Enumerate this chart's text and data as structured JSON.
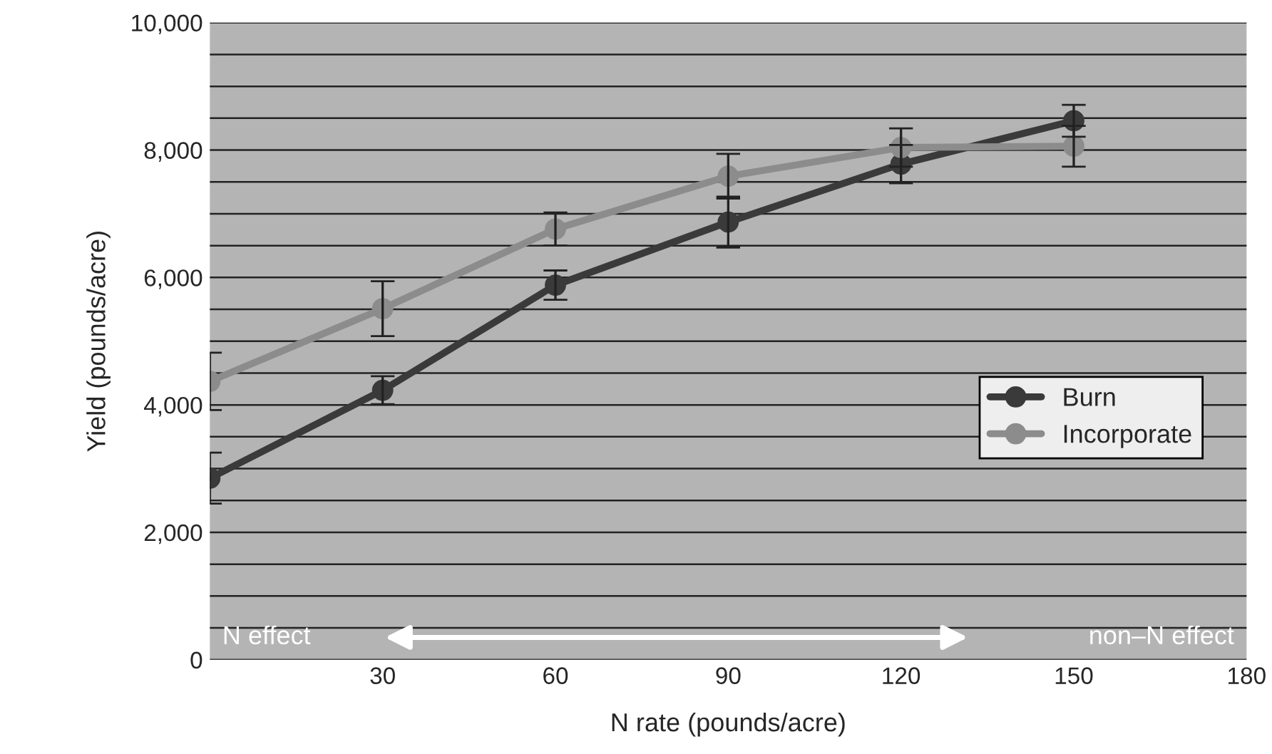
{
  "chart_data": {
    "type": "line",
    "xlabel": "N rate (pounds/acre)",
    "ylabel": "Yield (pounds/acre)",
    "x": [
      0,
      30,
      60,
      90,
      120,
      150
    ],
    "series": [
      {
        "name": "Burn",
        "color": "#3a3a3a",
        "values": [
          2850,
          4230,
          5880,
          6870,
          7780,
          8460
        ],
        "errors": [
          400,
          220,
          230,
          400,
          300,
          250
        ]
      },
      {
        "name": "Incorporate",
        "color": "#8c8c8c",
        "values": [
          4370,
          5510,
          6760,
          7590,
          8040,
          8060
        ],
        "errors": [
          450,
          430,
          260,
          350,
          300,
          320
        ]
      }
    ],
    "xlim": [
      0,
      180
    ],
    "xticks": [
      30,
      60,
      90,
      120,
      150,
      180
    ],
    "ylim": [
      0,
      10000
    ],
    "yticks": [
      {
        "value": 0,
        "label": "0"
      },
      {
        "value": 500,
        "label": null
      },
      {
        "value": 1000,
        "label": null
      },
      {
        "value": 1500,
        "label": null
      },
      {
        "value": 2000,
        "label": "2,000"
      },
      {
        "value": 2500,
        "label": null
      },
      {
        "value": 3000,
        "label": null
      },
      {
        "value": 3500,
        "label": null
      },
      {
        "value": 4000,
        "label": "4,000"
      },
      {
        "value": 4500,
        "label": null
      },
      {
        "value": 5000,
        "label": null
      },
      {
        "value": 5500,
        "label": null
      },
      {
        "value": 6000,
        "label": "6,000"
      },
      {
        "value": 6500,
        "label": null
      },
      {
        "value": 7000,
        "label": null
      },
      {
        "value": 7500,
        "label": null
      },
      {
        "value": 8000,
        "label": "8,000"
      },
      {
        "value": 8500,
        "label": null
      },
      {
        "value": 9000,
        "label": null
      },
      {
        "value": 9500,
        "label": null
      },
      {
        "value": 10000,
        "label": "10,000"
      }
    ],
    "grid": "y",
    "legend": "right",
    "marker": "circle",
    "line_style": "solid",
    "annotations": [
      "N effect",
      "non–N effect"
    ]
  }
}
